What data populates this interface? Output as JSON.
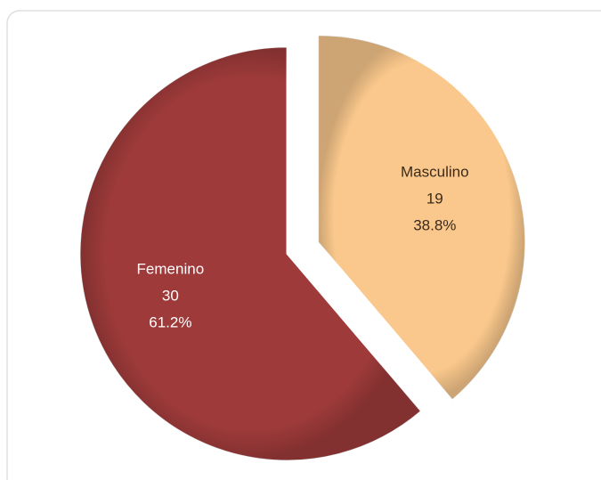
{
  "chart_data": {
    "type": "pie",
    "categories": [
      "Masculino",
      "Femenino"
    ],
    "values": [
      19,
      30
    ],
    "percent_labels": [
      "38.8%",
      "61.2%"
    ],
    "colors": [
      "#fac88c",
      "#9e3a3a"
    ],
    "label_colors": [
      "#3a2a1a",
      "#ffffff"
    ]
  }
}
